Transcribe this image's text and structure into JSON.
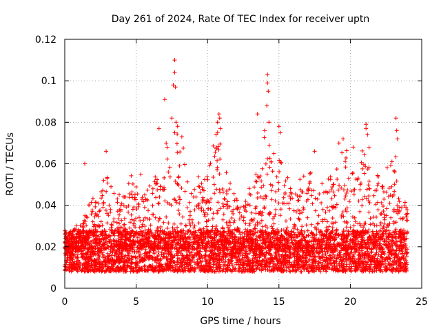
{
  "chart_data": {
    "type": "scatter",
    "title": "Day 261 of 2024, Rate Of TEC Index for receiver uptn",
    "xlabel": "GPS time / hours",
    "ylabel": "ROTI / TECUs",
    "xlim": [
      0,
      25
    ],
    "ylim": [
      0,
      0.12
    ],
    "xticks": [
      0,
      5,
      10,
      15,
      20,
      25
    ],
    "xtick_labels": [
      "0",
      "5",
      "10",
      "15",
      "20",
      "25"
    ],
    "yticks": [
      0,
      0.02,
      0.04,
      0.06,
      0.08,
      0.1,
      0.12
    ],
    "ytick_labels": [
      "0",
      "0.02",
      "0.04",
      "0.06",
      "0.08",
      "0.1",
      "0.12"
    ],
    "grid": true,
    "marker": "+",
    "color": "#ff0000",
    "series": [
      {
        "name": "ROTI",
        "x_range": [
          0,
          24
        ],
        "baseline_band": [
          0.005,
          0.025
        ],
        "envelope": [
          [
            0,
            0.025
          ],
          [
            1,
            0.03
          ],
          [
            2,
            0.042
          ],
          [
            3,
            0.055
          ],
          [
            4,
            0.045
          ],
          [
            5,
            0.055
          ],
          [
            6,
            0.05
          ],
          [
            7,
            0.065
          ],
          [
            7.6,
            0.08
          ],
          [
            8.5,
            0.06
          ],
          [
            9,
            0.05
          ],
          [
            10,
            0.055
          ],
          [
            10.8,
            0.08
          ],
          [
            11.5,
            0.05
          ],
          [
            12.5,
            0.04
          ],
          [
            13.5,
            0.055
          ],
          [
            14.2,
            0.075
          ],
          [
            15,
            0.06
          ],
          [
            16,
            0.045
          ],
          [
            17.5,
            0.06
          ],
          [
            18.5,
            0.05
          ],
          [
            19.5,
            0.065
          ],
          [
            20.5,
            0.06
          ],
          [
            21,
            0.07
          ],
          [
            22,
            0.05
          ],
          [
            23.2,
            0.065
          ],
          [
            24,
            0.04
          ]
        ],
        "notable_points": [
          {
            "x": 7.7,
            "y": 0.11
          },
          {
            "x": 7.7,
            "y": 0.104
          },
          {
            "x": 7.6,
            "y": 0.098
          },
          {
            "x": 7.75,
            "y": 0.097
          },
          {
            "x": 7.0,
            "y": 0.091
          },
          {
            "x": 7.5,
            "y": 0.082
          },
          {
            "x": 7.8,
            "y": 0.08
          },
          {
            "x": 7.9,
            "y": 0.078
          },
          {
            "x": 7.7,
            "y": 0.075
          },
          {
            "x": 6.6,
            "y": 0.077
          },
          {
            "x": 8.2,
            "y": 0.073
          },
          {
            "x": 14.2,
            "y": 0.103
          },
          {
            "x": 14.2,
            "y": 0.099
          },
          {
            "x": 14.25,
            "y": 0.095
          },
          {
            "x": 14.15,
            "y": 0.088
          },
          {
            "x": 13.5,
            "y": 0.084
          },
          {
            "x": 14.3,
            "y": 0.08
          },
          {
            "x": 14.0,
            "y": 0.076
          },
          {
            "x": 15.0,
            "y": 0.078
          },
          {
            "x": 15.1,
            "y": 0.075
          },
          {
            "x": 10.8,
            "y": 0.084
          },
          {
            "x": 10.85,
            "y": 0.082
          },
          {
            "x": 10.7,
            "y": 0.08
          },
          {
            "x": 10.9,
            "y": 0.077
          },
          {
            "x": 10.6,
            "y": 0.074
          },
          {
            "x": 23.2,
            "y": 0.082
          },
          {
            "x": 23.25,
            "y": 0.076
          },
          {
            "x": 23.3,
            "y": 0.072
          },
          {
            "x": 21.1,
            "y": 0.079
          },
          {
            "x": 21.1,
            "y": 0.077
          },
          {
            "x": 21.2,
            "y": 0.074
          },
          {
            "x": 19.5,
            "y": 0.072
          },
          {
            "x": 19.2,
            "y": 0.07
          },
          {
            "x": 20.2,
            "y": 0.068
          },
          {
            "x": 17.5,
            "y": 0.066
          },
          {
            "x": 2.9,
            "y": 0.066
          },
          {
            "x": 1.4,
            "y": 0.06
          }
        ]
      }
    ]
  }
}
